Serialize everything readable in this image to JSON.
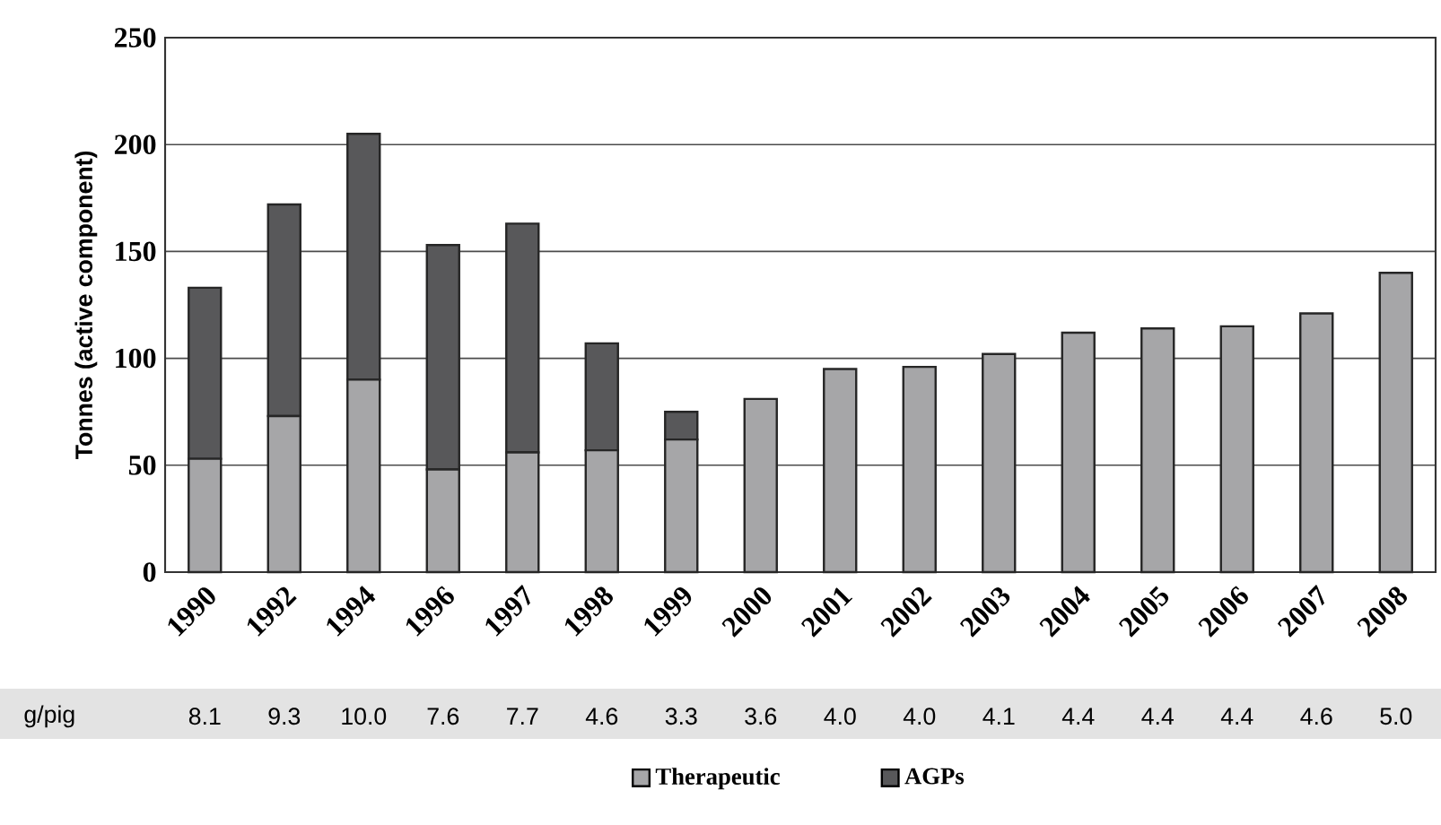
{
  "chart_data": {
    "type": "bar",
    "stacked": true,
    "categories": [
      "1990",
      "1992",
      "1994",
      "1996",
      "1997",
      "1998",
      "1999",
      "2000",
      "2001",
      "2002",
      "2003",
      "2004",
      "2005",
      "2006",
      "2007",
      "2008"
    ],
    "series": [
      {
        "name": "Therapeutic",
        "color": "#a6a6a8",
        "values": [
          53,
          73,
          90,
          48,
          56,
          57,
          62,
          81,
          95,
          96,
          102,
          112,
          114,
          115,
          121,
          140
        ]
      },
      {
        "name": "AGPs",
        "color": "#58585a",
        "values": [
          80,
          99,
          115,
          105,
          107,
          50,
          13,
          null,
          null,
          null,
          null,
          null,
          null,
          null,
          null,
          null
        ]
      }
    ],
    "ylabel": "Tonnes (active component)",
    "ylim": [
      0,
      250
    ],
    "yticks": [
      0,
      50,
      100,
      150,
      200,
      250
    ],
    "grid": "y",
    "legend": "bottom",
    "annotations": [
      "g/pig",
      "8.1",
      "9.3",
      "10.0",
      "7.6",
      "7.7",
      "4.6",
      "3.3",
      "3.6",
      "4.0",
      "4.0",
      "4.1",
      "4.4",
      "4.4",
      "4.4",
      "4.6",
      "5.0"
    ]
  }
}
